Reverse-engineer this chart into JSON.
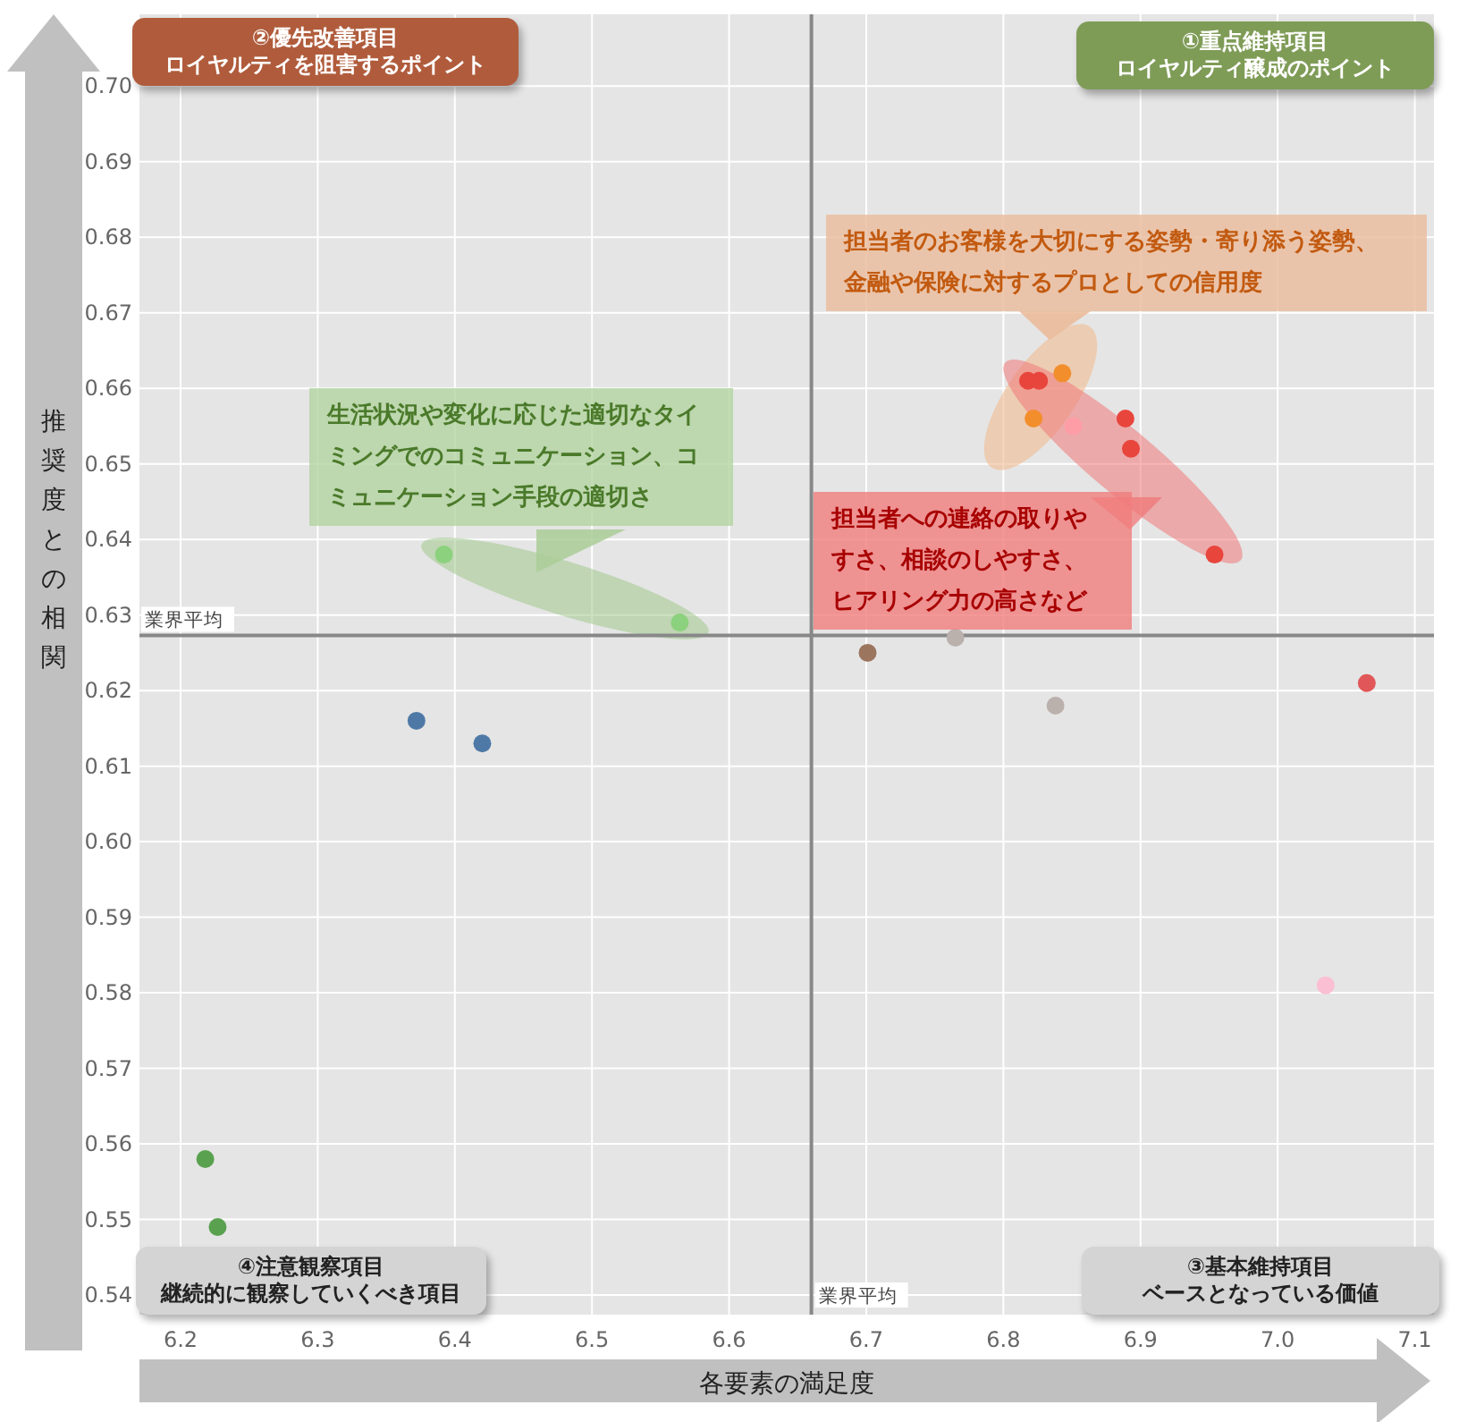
{
  "chart_data": {
    "type": "scatter",
    "xlabel": "各要素の満足度",
    "ylabel": "推奨度との相関",
    "x": [
      6.218,
      6.227,
      6.372,
      6.42,
      6.392,
      6.564,
      6.701,
      6.765,
      6.838,
      7.065,
      6.843,
      6.822,
      6.818,
      6.826,
      6.851,
      6.889,
      6.893,
      6.954,
      7.035
    ],
    "values": [
      0.558,
      0.549,
      0.616,
      0.613,
      0.638,
      0.629,
      0.625,
      0.627,
      0.618,
      0.621,
      0.662,
      0.656,
      0.661,
      0.661,
      0.655,
      0.656,
      0.652,
      0.638,
      0.581
    ],
    "colors": [
      "#59a14f",
      "#59a14f",
      "#4e79a7",
      "#4e79a7",
      "#8cd17d",
      "#8cd17d",
      "#9c755f",
      "#bab0ac",
      "#bab0ac",
      "#e15759",
      "#f28e2b",
      "#f28e2b",
      "#e8453c",
      "#e8453c",
      "#ff9da7",
      "#e8453c",
      "#e8453c",
      "#e8453c",
      "#fabfd2"
    ],
    "xlim": [
      6.17,
      7.114
    ],
    "ylim": [
      0.5374,
      0.7095
    ],
    "xticks": [
      6.2,
      6.3,
      6.4,
      6.5,
      6.6,
      6.7,
      6.8,
      6.9,
      {
        "value": 7,
        "label": "7.0"
      },
      7.1
    ],
    "yticks": [
      0.54,
      0.55,
      0.56,
      0.57,
      0.58,
      0.59,
      {
        "value": 0.6,
        "label": "0.60"
      },
      0.61,
      0.62,
      0.63,
      0.64,
      0.65,
      0.66,
      0.67,
      0.68,
      0.69,
      {
        "value": 0.7,
        "label": "0.70"
      }
    ],
    "grid": true,
    "marker": "circle",
    "ref_lines": [
      {
        "axis": "y",
        "value": 0.6273,
        "label": "業界平均",
        "color": "#888888"
      },
      {
        "axis": "x",
        "value": 6.66,
        "label": "業界平均",
        "color": "#888888"
      }
    ],
    "annotations": [
      "②優先改善項目",
      "ロイヤルティを阻害するポイント",
      "①重点維持項目",
      "ロイヤルティ醸成のポイント",
      "④注意観察項目",
      "継続的に観察していくべき項目",
      "③基本維持項目",
      "ベースとなっている価値",
      "担当者のお客様を大切にする姿勢・寄り添う姿勢、金融や保険に対するプロとしての信用度",
      "担当者への連絡の取りやすさ、相談のしやすさ、ヒアリング力の高さなど",
      "生活状況や変化に応じた適切なタイミングでのコミュニケーション、コミュニケーション手段の適切さ"
    ]
  }
}
